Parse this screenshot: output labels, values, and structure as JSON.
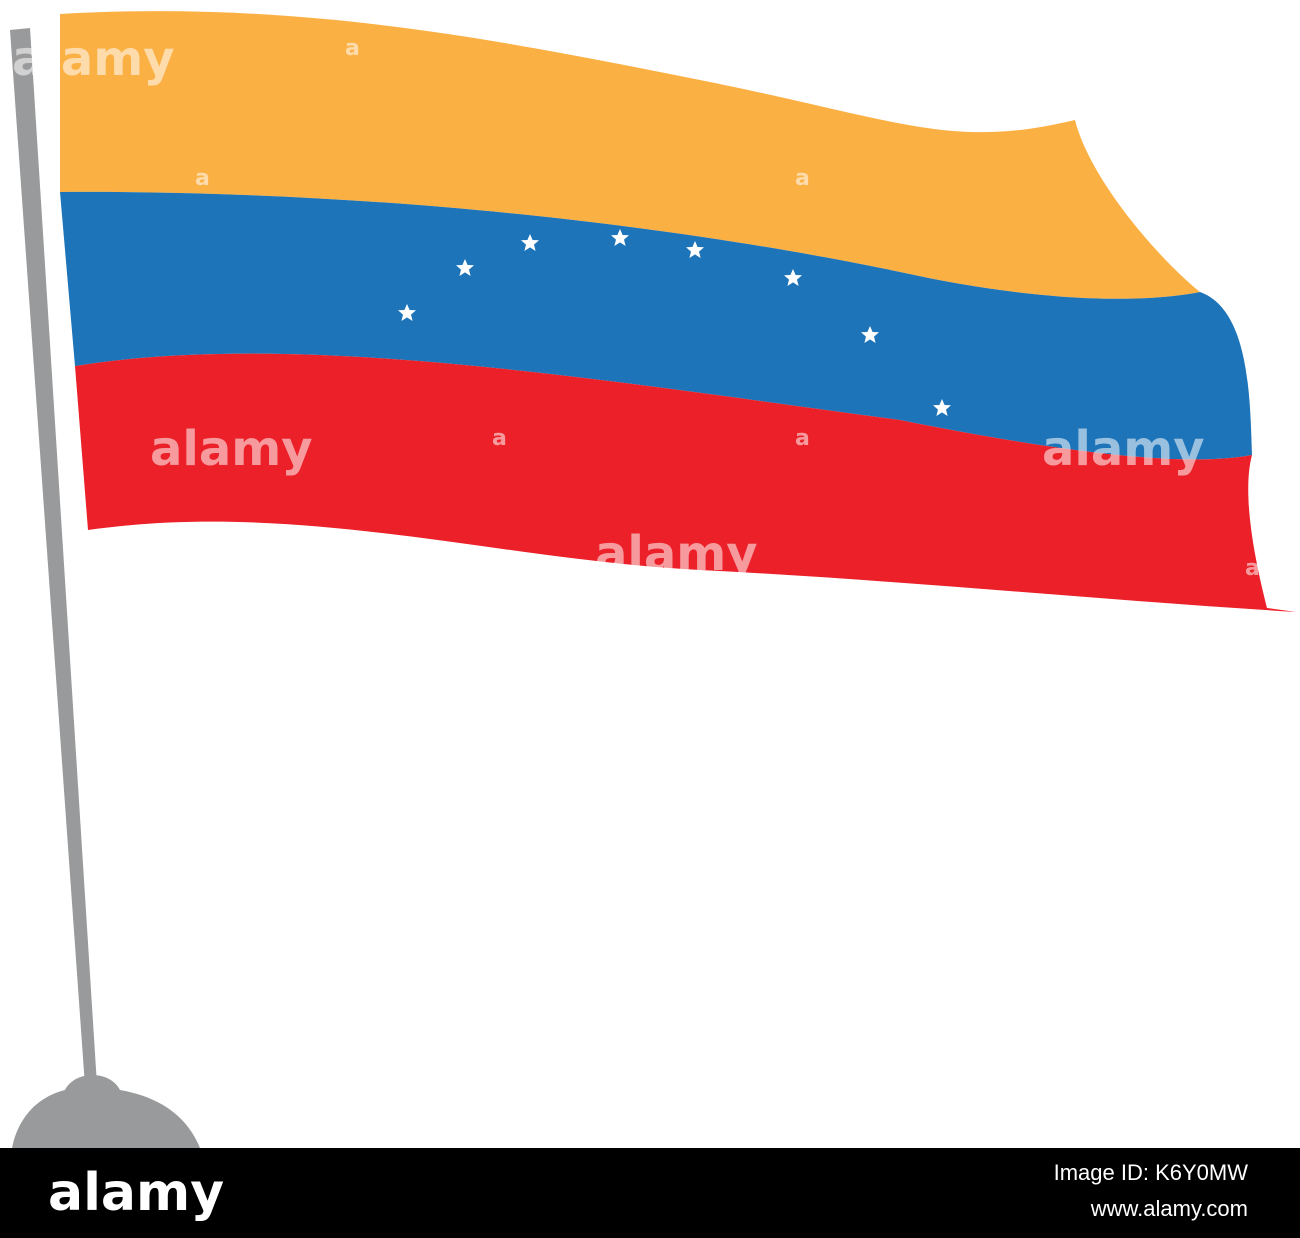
{
  "image": {
    "watermarks": [
      "alamy",
      "alamy",
      "alamy",
      "alamy",
      "a",
      "a",
      "a",
      "a",
      "a",
      "a"
    ]
  },
  "footer": {
    "logo": "alamy",
    "image_id": "Image ID: K6Y0MW",
    "website": "www.alamy.com"
  }
}
